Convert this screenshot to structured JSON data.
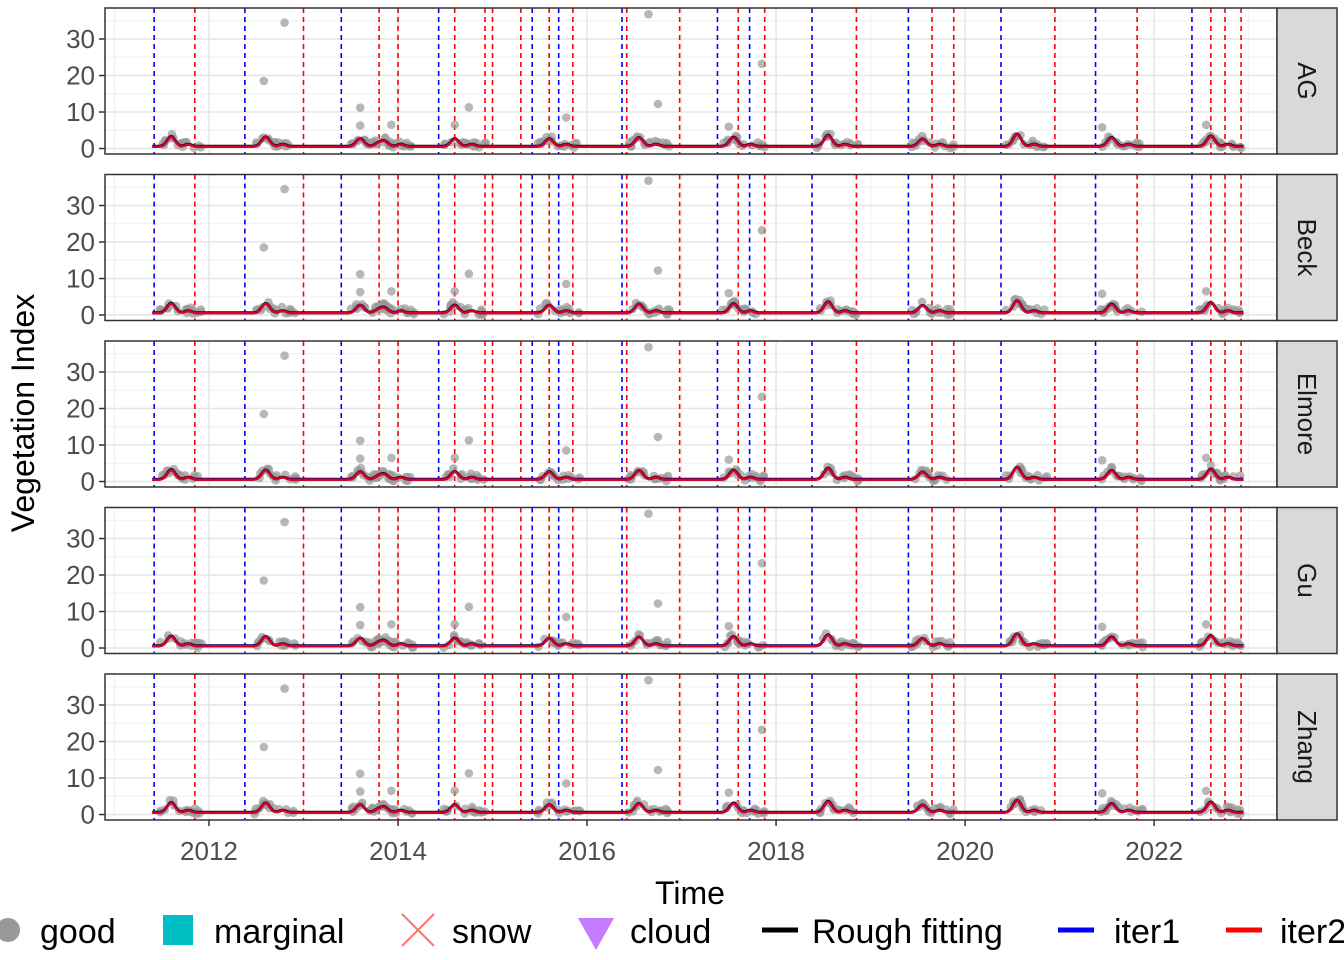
{
  "chart_data": {
    "type": "scatter",
    "facet_by": "method",
    "facets": [
      "AG",
      "Beck",
      "Elmore",
      "Gu",
      "Zhang"
    ],
    "xlabel": "Time",
    "ylabel": "Vegetation Index",
    "x_ticks": [
      "2012",
      "2014",
      "2016",
      "2018",
      "2020",
      "2022"
    ],
    "x_tick_values": [
      2012,
      2014,
      2016,
      2018,
      2020,
      2022
    ],
    "xlim": [
      2010.9,
      2023.3
    ],
    "y_ticks": [
      "0",
      "10",
      "20",
      "30"
    ],
    "y_tick_values": [
      0,
      10,
      20,
      30
    ],
    "ylim": [
      -1.5,
      38.5
    ],
    "grid": true,
    "legend_position": "bottom",
    "legend": [
      {
        "label": "good",
        "shape": "circle",
        "color": "#999999"
      },
      {
        "label": "marginal",
        "shape": "square",
        "color": "#00BFC4"
      },
      {
        "label": "snow",
        "shape": "cross",
        "color": "#F8766D"
      },
      {
        "label": "cloud",
        "shape": "triangle-down",
        "color": "#C77CFF"
      },
      {
        "label": "Rough fitting",
        "shape": "line",
        "color": "#000000"
      },
      {
        "label": "iter1",
        "shape": "line",
        "color": "#0000FF"
      },
      {
        "label": "iter2",
        "shape": "line",
        "color": "#FF0000"
      }
    ],
    "season_start_lines": [
      2011.42,
      2012.38,
      2013.4,
      2014.43,
      2015.42,
      2015.7,
      2016.37,
      2017.38,
      2017.72,
      2018.38,
      2019.4,
      2020.38,
      2021.38,
      2022.4
    ],
    "season_end_lines": [
      2011.85,
      2013.0,
      2013.8,
      2014.0,
      2014.6,
      2014.92,
      2015.0,
      2015.3,
      2015.6,
      2015.85,
      2016.42,
      2016.98,
      2017.6,
      2017.88,
      2018.85,
      2019.65,
      2019.88,
      2020.95,
      2021.82,
      2022.6,
      2022.75,
      2022.92
    ],
    "season_line_colors": {
      "start": "#0000FF",
      "end": "#FF0000"
    },
    "baseline_value": 0.5,
    "peaks": [
      {
        "x": 2011.6,
        "y": 2.6
      },
      {
        "x": 2012.6,
        "y": 2.4
      },
      {
        "x": 2013.6,
        "y": 2.2
      },
      {
        "x": 2013.85,
        "y": 1.6
      },
      {
        "x": 2014.6,
        "y": 2.0
      },
      {
        "x": 2015.6,
        "y": 2.0
      },
      {
        "x": 2016.55,
        "y": 2.6
      },
      {
        "x": 2017.55,
        "y": 2.6
      },
      {
        "x": 2018.55,
        "y": 2.8
      },
      {
        "x": 2019.55,
        "y": 2.0
      },
      {
        "x": 2020.55,
        "y": 3.6
      },
      {
        "x": 2021.55,
        "y": 2.4
      },
      {
        "x": 2022.6,
        "y": 2.6
      }
    ],
    "outlier_points": [
      {
        "x": 2012.8,
        "y": 34.5
      },
      {
        "x": 2012.58,
        "y": 18.5
      },
      {
        "x": 2013.6,
        "y": 11.2
      },
      {
        "x": 2013.6,
        "y": 6.3
      },
      {
        "x": 2013.93,
        "y": 6.5
      },
      {
        "x": 2014.75,
        "y": 11.3
      },
      {
        "x": 2014.6,
        "y": 6.5
      },
      {
        "x": 2015.78,
        "y": 8.5
      },
      {
        "x": 2016.65,
        "y": 36.8
      },
      {
        "x": 2016.75,
        "y": 12.2
      },
      {
        "x": 2017.85,
        "y": 23.2
      },
      {
        "x": 2017.5,
        "y": 6.0
      },
      {
        "x": 2021.45,
        "y": 5.8
      },
      {
        "x": 2022.55,
        "y": 6.5
      }
    ]
  }
}
